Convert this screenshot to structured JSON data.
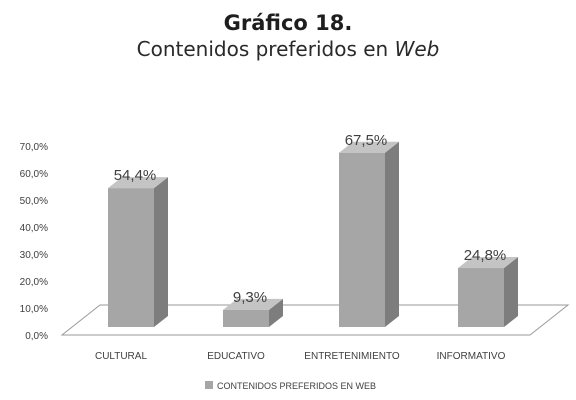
{
  "header": {
    "title": "Gráfico 18.",
    "subtitle_plain": "Contenidos preferidos en ",
    "subtitle_italic": "Web"
  },
  "chart_data": {
    "type": "bar",
    "style": "3d-columns",
    "categories": [
      "CULTURAL",
      "EDUCATIVO",
      "ENTRETENIMIENTO",
      "INFORMATIVO"
    ],
    "series": [
      {
        "name": "CONTENIDOS PREFERIDOS EN WEB",
        "values": [
          54.4,
          9.3,
          67.5,
          24.8
        ],
        "data_labels": [
          "54,4%",
          "9,3%",
          "67,5%",
          "24,8%"
        ]
      }
    ],
    "y_ticks": [
      "0,0%",
      "10,0%",
      "20,0%",
      "30,0%",
      "40,0%",
      "50,0%",
      "60,0%",
      "70,0%"
    ],
    "ylim": [
      0,
      70
    ],
    "grid": false,
    "legend_position": "bottom",
    "colors": {
      "bar_front": "#a6a6a6",
      "bar_side": "#7d7d7d",
      "bar_top": "#c4c4c4",
      "floor_stroke": "#9a9a9a",
      "text": "#404040"
    }
  }
}
